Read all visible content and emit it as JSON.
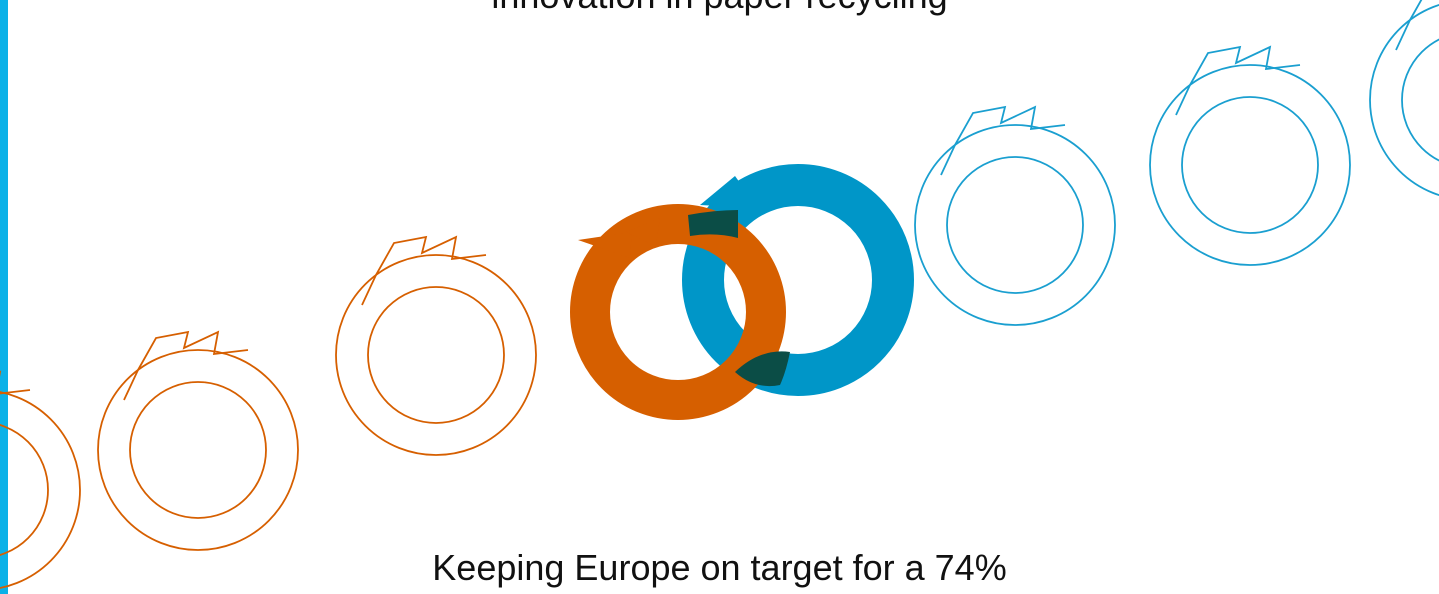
{
  "top_text": {
    "line1": "innovation in paper recycling"
  },
  "bottom_text": {
    "line1": "Keeping Europe on target for a 74%"
  },
  "colors": {
    "accent_bar": "#0ab1e8",
    "orange": "#d65f00",
    "blue": "#0096c8",
    "overlap": "#0b4d46",
    "outline_orange": "#d65f00",
    "outline_blue": "#1a9fd0",
    "text": "#111111"
  },
  "icons": [
    "recycle-arrow-icon"
  ]
}
